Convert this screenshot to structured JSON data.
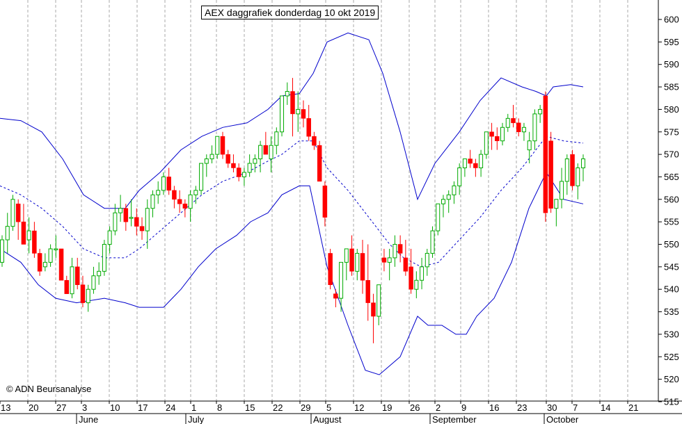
{
  "chart_data": {
    "type": "candlestick",
    "title": "AEX daggrafiek donderdag 10 okt 2019",
    "copyright": "© ADN Beursanalyse",
    "ylim": [
      512,
      604
    ],
    "y_ticks": [
      515,
      520,
      525,
      530,
      535,
      540,
      545,
      550,
      555,
      560,
      565,
      570,
      575,
      580,
      585,
      590,
      595,
      600
    ],
    "x_tick_labels": [
      "13",
      "20",
      "27",
      "3",
      "10",
      "17",
      "24",
      "1",
      "8",
      "15",
      "22",
      "29",
      "5",
      "12",
      "19",
      "26",
      "2",
      "9",
      "16",
      "23",
      "30",
      "7",
      "14",
      "21"
    ],
    "month_labels": [
      "June",
      "July",
      "August",
      "September",
      "October"
    ],
    "grid": "vertical dashed",
    "colors": {
      "up": "#00aa00",
      "down": "#ff0000",
      "band": "#0000cc",
      "grid": "#aaaaaa"
    },
    "candles": [
      [
        546,
        552,
        545,
        551
      ],
      [
        551,
        557,
        548,
        554
      ],
      [
        554,
        561,
        553,
        560
      ],
      [
        559,
        560,
        551,
        555
      ],
      [
        555,
        559,
        550,
        550
      ],
      [
        551,
        556,
        548,
        553
      ],
      [
        553,
        555,
        547,
        548
      ],
      [
        548,
        549,
        543,
        544
      ],
      [
        545,
        548,
        544,
        546
      ],
      [
        546,
        550,
        545,
        549
      ],
      [
        549,
        552,
        547,
        549
      ],
      [
        549,
        549,
        542,
        542
      ],
      [
        542,
        543,
        539,
        539
      ],
      [
        539,
        547,
        538,
        545
      ],
      [
        545,
        547,
        540,
        541
      ],
      [
        541,
        543,
        536,
        537
      ],
      [
        537,
        541,
        535,
        540
      ],
      [
        540,
        545,
        539,
        543
      ],
      [
        543,
        546,
        541,
        544
      ],
      [
        544,
        551,
        543,
        550
      ],
      [
        550,
        554,
        548,
        553
      ],
      [
        553,
        559,
        552,
        557
      ],
      [
        557,
        561,
        555,
        558
      ],
      [
        558,
        559,
        553,
        555
      ],
      [
        556,
        560,
        554,
        556
      ],
      [
        556,
        558,
        552,
        554
      ],
      [
        554,
        556,
        551,
        553
      ],
      [
        553,
        560,
        549,
        558
      ],
      [
        558,
        562,
        556,
        561
      ],
      [
        561,
        564,
        559,
        562
      ],
      [
        562,
        566,
        561,
        565
      ],
      [
        565,
        567,
        561,
        562
      ],
      [
        562,
        563,
        558,
        560
      ],
      [
        560,
        562,
        557,
        559
      ],
      [
        559,
        560,
        556,
        558
      ],
      [
        558,
        562,
        555,
        561
      ],
      [
        561,
        563,
        559,
        562
      ],
      [
        562,
        568,
        561,
        568
      ],
      [
        568,
        570,
        565,
        569
      ],
      [
        569,
        572,
        568,
        570
      ],
      [
        570,
        574,
        569,
        574
      ],
      [
        574,
        575,
        569,
        570
      ],
      [
        570,
        571,
        567,
        568
      ],
      [
        568,
        570,
        566,
        567
      ],
      [
        567,
        568,
        564,
        565
      ],
      [
        565,
        567,
        563,
        566
      ],
      [
        566,
        570,
        565,
        568
      ],
      [
        568,
        570,
        566,
        569
      ],
      [
        569,
        573,
        566,
        572
      ],
      [
        572,
        575,
        570,
        570
      ],
      [
        569,
        574,
        566,
        572
      ],
      [
        572,
        576,
        570,
        575
      ],
      [
        575,
        583,
        574,
        583
      ],
      [
        583,
        586,
        581,
        584
      ],
      [
        584,
        587,
        574,
        579
      ],
      [
        579,
        584,
        575,
        580
      ],
      [
        580,
        582,
        576,
        578
      ],
      [
        578,
        581,
        573,
        574
      ],
      [
        574,
        575,
        571,
        572
      ],
      [
        572,
        573,
        564,
        564
      ],
      [
        563,
        564,
        554,
        556
      ],
      [
        548,
        549,
        540,
        541
      ],
      [
        539,
        540,
        536,
        538
      ],
      [
        538,
        546,
        535,
        546
      ],
      [
        546,
        549,
        542,
        549
      ],
      [
        549,
        552,
        543,
        544
      ],
      [
        544,
        549,
        542,
        548
      ],
      [
        548,
        551,
        539,
        542
      ],
      [
        542,
        550,
        533,
        537
      ],
      [
        537,
        539,
        528,
        534
      ],
      [
        534,
        541,
        532,
        541
      ],
      [
        547,
        549,
        544,
        546
      ],
      [
        546,
        549,
        542,
        547
      ],
      [
        547,
        552,
        545,
        550
      ],
      [
        550,
        552,
        546,
        548
      ],
      [
        547,
        551,
        543,
        544
      ],
      [
        545,
        549,
        539,
        540
      ],
      [
        540,
        544,
        538,
        542
      ],
      [
        542,
        547,
        540,
        545
      ],
      [
        545,
        549,
        543,
        548
      ],
      [
        548,
        554,
        547,
        553
      ],
      [
        553,
        559,
        552,
        559
      ],
      [
        559,
        561,
        556,
        560
      ],
      [
        560,
        562,
        557,
        561
      ],
      [
        561,
        564,
        559,
        563
      ],
      [
        563,
        568,
        561,
        567
      ],
      [
        567,
        569,
        565,
        569
      ],
      [
        569,
        571,
        567,
        568
      ],
      [
        568,
        569,
        565,
        567
      ],
      [
        567,
        571,
        565,
        570
      ],
      [
        570,
        575,
        569,
        575
      ],
      [
        575,
        577,
        571,
        574
      ],
      [
        574,
        576,
        571,
        573
      ],
      [
        573,
        577,
        572,
        576
      ],
      [
        576,
        579,
        575,
        578
      ],
      [
        578,
        581,
        576,
        577
      ],
      [
        577,
        578,
        574,
        575
      ],
      [
        575,
        577,
        573,
        576
      ],
      [
        571,
        575,
        568,
        573
      ],
      [
        573,
        580,
        571,
        579
      ],
      [
        579,
        581,
        577,
        580
      ],
      [
        583,
        584,
        555,
        557
      ],
      [
        573,
        575,
        557,
        558
      ],
      [
        558,
        560,
        554,
        560
      ],
      [
        560,
        567,
        558,
        564
      ],
      [
        564,
        570,
        561,
        569
      ],
      [
        570,
        571,
        562,
        563
      ],
      [
        563,
        568,
        560,
        567
      ],
      [
        567,
        570,
        564,
        569
      ]
    ],
    "band_upper": [
      [
        0,
        578
      ],
      [
        30,
        577.5
      ],
      [
        60,
        575
      ],
      [
        90,
        569
      ],
      [
        120,
        561
      ],
      [
        150,
        558
      ],
      [
        180,
        558
      ],
      [
        200,
        562
      ],
      [
        230,
        566
      ],
      [
        260,
        571
      ],
      [
        290,
        574
      ],
      [
        320,
        576
      ],
      [
        355,
        577
      ],
      [
        385,
        580
      ],
      [
        405,
        583
      ],
      [
        430,
        583.5
      ],
      [
        450,
        588
      ],
      [
        470,
        595
      ],
      [
        500,
        597
      ],
      [
        530,
        595.5
      ],
      [
        550,
        588
      ],
      [
        575,
        575
      ],
      [
        600,
        560
      ],
      [
        625,
        568
      ],
      [
        660,
        575
      ],
      [
        690,
        582
      ],
      [
        720,
        587
      ],
      [
        750,
        585
      ],
      [
        770,
        584
      ],
      [
        785,
        583
      ],
      [
        795,
        585
      ],
      [
        820,
        585.5
      ],
      [
        838,
        585
      ]
    ],
    "band_middle": [
      [
        0,
        563
      ],
      [
        30,
        561
      ],
      [
        60,
        558
      ],
      [
        90,
        554
      ],
      [
        120,
        549
      ],
      [
        150,
        547
      ],
      [
        180,
        547
      ],
      [
        200,
        549
      ],
      [
        230,
        553
      ],
      [
        260,
        557
      ],
      [
        290,
        561
      ],
      [
        320,
        564
      ],
      [
        355,
        566
      ],
      [
        385,
        568.5
      ],
      [
        405,
        570
      ],
      [
        430,
        573
      ],
      [
        450,
        573
      ],
      [
        470,
        567
      ],
      [
        500,
        562
      ],
      [
        530,
        556
      ],
      [
        560,
        550
      ],
      [
        580,
        547
      ],
      [
        605,
        545
      ],
      [
        630,
        546
      ],
      [
        660,
        551
      ],
      [
        690,
        556
      ],
      [
        720,
        562
      ],
      [
        750,
        567
      ],
      [
        770,
        571
      ],
      [
        785,
        574
      ],
      [
        810,
        573
      ],
      [
        838,
        572.5
      ]
    ],
    "band_lower": [
      [
        0,
        549
      ],
      [
        30,
        546
      ],
      [
        55,
        541
      ],
      [
        80,
        538
      ],
      [
        110,
        537
      ],
      [
        150,
        538
      ],
      [
        180,
        537
      ],
      [
        200,
        536
      ],
      [
        235,
        536
      ],
      [
        260,
        540
      ],
      [
        285,
        545
      ],
      [
        310,
        549
      ],
      [
        340,
        552
      ],
      [
        360,
        555
      ],
      [
        385,
        557
      ],
      [
        405,
        561
      ],
      [
        430,
        563
      ],
      [
        445,
        563
      ],
      [
        470,
        545
      ],
      [
        500,
        532
      ],
      [
        525,
        522
      ],
      [
        545,
        521
      ],
      [
        575,
        525
      ],
      [
        600,
        534
      ],
      [
        615,
        532
      ],
      [
        635,
        532
      ],
      [
        655,
        530
      ],
      [
        670,
        530
      ],
      [
        685,
        534
      ],
      [
        710,
        538
      ],
      [
        735,
        546
      ],
      [
        760,
        558
      ],
      [
        785,
        566
      ],
      [
        810,
        560
      ],
      [
        838,
        559
      ]
    ]
  }
}
